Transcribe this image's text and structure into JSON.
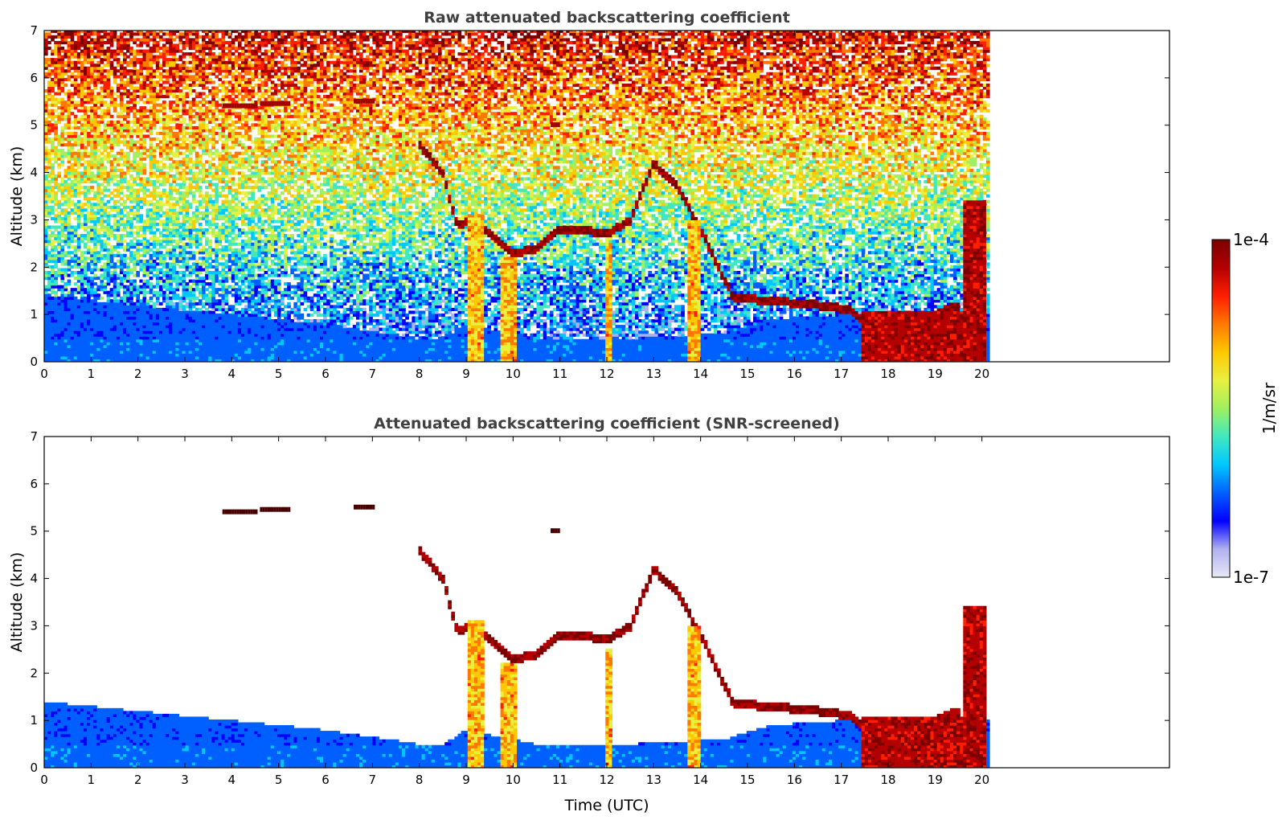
{
  "chart_data": [
    {
      "type": "heatmap",
      "title": "Raw attenuated backscattering coefficient",
      "xlabel": "",
      "ylabel": "Altitude (km)",
      "xlim": [
        0,
        24
      ],
      "ylim": [
        0,
        7
      ],
      "xticks": [
        "0",
        "1",
        "2",
        "3",
        "4",
        "5",
        "6",
        "7",
        "8",
        "9",
        "10",
        "11",
        "12",
        "13",
        "14",
        "15",
        "16",
        "17",
        "18",
        "19",
        "20"
      ],
      "yticks": [
        "0",
        "1",
        "2",
        "3",
        "4",
        "5",
        "6",
        "7"
      ],
      "data_end_time": 20.1,
      "surface_layer_top_km": 0.5,
      "vertical_columns": [
        {
          "t0": 9.0,
          "t1": 9.4,
          "top": 3.1
        },
        {
          "t0": 9.7,
          "t1": 10.1,
          "top": 2.2
        },
        {
          "t0": 11.95,
          "t1": 12.1,
          "top": 2.5
        },
        {
          "t0": 13.7,
          "t1": 14.0,
          "top": 3.0
        },
        {
          "t0": 17.4,
          "t1": 19.6,
          "top": 1.1
        },
        {
          "t0": 19.6,
          "t1": 20.1,
          "top": 3.4
        }
      ],
      "cloud_layer": {
        "time": [
          8.0,
          8.5,
          8.8,
          9.2,
          9.6,
          10.0,
          10.5,
          11.0,
          11.5,
          12.0,
          12.5,
          13.0,
          13.5,
          14.0,
          14.7,
          15.5,
          16.5,
          17.2,
          18.0,
          18.5,
          19.0,
          19.5
        ],
        "altitude_km": [
          4.6,
          4.0,
          2.9,
          3.0,
          2.6,
          2.3,
          2.4,
          2.8,
          2.8,
          2.7,
          3.0,
          4.2,
          3.7,
          2.8,
          1.35,
          1.3,
          1.2,
          1.1,
          0.4,
          0.7,
          1.0,
          1.2
        ]
      },
      "elevated_layers": [
        {
          "t0": 3.8,
          "t1": 4.5,
          "altitude_km": 5.4
        },
        {
          "t0": 4.6,
          "t1": 5.2,
          "altitude_km": 5.45
        },
        {
          "t0": 6.6,
          "t1": 7.0,
          "altitude_km": 5.5
        },
        {
          "t0": 10.8,
          "t1": 11.0,
          "altitude_km": 5.0
        }
      ]
    },
    {
      "type": "heatmap",
      "title": "Attenuated backscattering coefficient (SNR-screened)",
      "xlabel": "Time (UTC)",
      "ylabel": "Altitude (km)",
      "xlim": [
        0,
        24
      ],
      "ylim": [
        0,
        7
      ],
      "xticks": [
        "0",
        "1",
        "2",
        "3",
        "4",
        "5",
        "6",
        "7",
        "8",
        "9",
        "10",
        "11",
        "12",
        "13",
        "14",
        "15",
        "16",
        "17",
        "18",
        "19",
        "20"
      ],
      "yticks": [
        "0",
        "1",
        "2",
        "3",
        "4",
        "5",
        "6",
        "7"
      ],
      "data_end_time": 20.1,
      "boundary_layer_top": {
        "time": [
          0,
          2,
          4,
          6,
          8,
          8.5,
          9.0,
          10.5,
          12.5,
          14.5,
          15.5,
          17.0
        ],
        "altitude_km": [
          1.4,
          1.2,
          1.0,
          0.8,
          0.5,
          0.5,
          0.8,
          0.5,
          0.5,
          0.6,
          0.9,
          1.0
        ]
      }
    }
  ],
  "colorbar": {
    "label": "1/m/sr",
    "min_label": "1e-7",
    "max_label": "1e-4",
    "colormap": [
      "#e8e8f8",
      "#b0b0f0",
      "#0000ff",
      "#0060ff",
      "#00c8ff",
      "#40e8c0",
      "#a0f060",
      "#e8f040",
      "#ffc800",
      "#ff7800",
      "#ff1e00",
      "#b40000",
      "#7a0000"
    ]
  }
}
